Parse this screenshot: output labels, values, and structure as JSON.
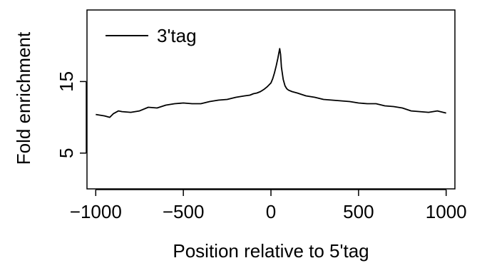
{
  "chart_data": {
    "type": "line",
    "title": "",
    "xlabel": "Position relative to 5'tag",
    "ylabel": "Fold enrichment",
    "xlim": [
      -1050,
      1050
    ],
    "ylim": [
      0,
      25
    ],
    "xticks": [
      -1000,
      -500,
      0,
      500,
      1000
    ],
    "xtick_labels": [
      "−1000",
      "−500",
      "0",
      "500",
      "1000"
    ],
    "yticks": [
      5,
      15
    ],
    "ytick_labels": [
      "5",
      "15"
    ],
    "grid": false,
    "legend": {
      "position": "top-left"
    },
    "series": [
      {
        "name": "3'tag",
        "color": "#000000",
        "x": [
          -1000,
          -950,
          -920,
          -900,
          -870,
          -850,
          -800,
          -750,
          -700,
          -650,
          -600,
          -550,
          -500,
          -450,
          -400,
          -350,
          -300,
          -250,
          -200,
          -150,
          -120,
          -100,
          -80,
          -60,
          -40,
          -20,
          0,
          10,
          20,
          30,
          40,
          45,
          50,
          55,
          60,
          70,
          80,
          90,
          100,
          120,
          150,
          200,
          250,
          300,
          350,
          400,
          450,
          500,
          550,
          600,
          650,
          700,
          750,
          800,
          850,
          900,
          950,
          1000
        ],
        "y": [
          10.4,
          10.2,
          10.0,
          10.5,
          10.9,
          10.8,
          10.7,
          10.9,
          11.4,
          11.3,
          11.7,
          11.9,
          12.0,
          11.9,
          11.9,
          12.2,
          12.4,
          12.5,
          12.8,
          13.0,
          13.1,
          13.3,
          13.4,
          13.6,
          13.9,
          14.3,
          14.8,
          15.4,
          16.2,
          17.2,
          18.3,
          19.0,
          19.6,
          18.8,
          17.0,
          15.3,
          14.4,
          14.0,
          13.8,
          13.6,
          13.4,
          13.0,
          12.8,
          12.5,
          12.4,
          12.3,
          12.2,
          12.0,
          11.9,
          11.9,
          11.6,
          11.5,
          11.3,
          10.9,
          10.8,
          10.7,
          10.9,
          10.6
        ]
      }
    ]
  }
}
